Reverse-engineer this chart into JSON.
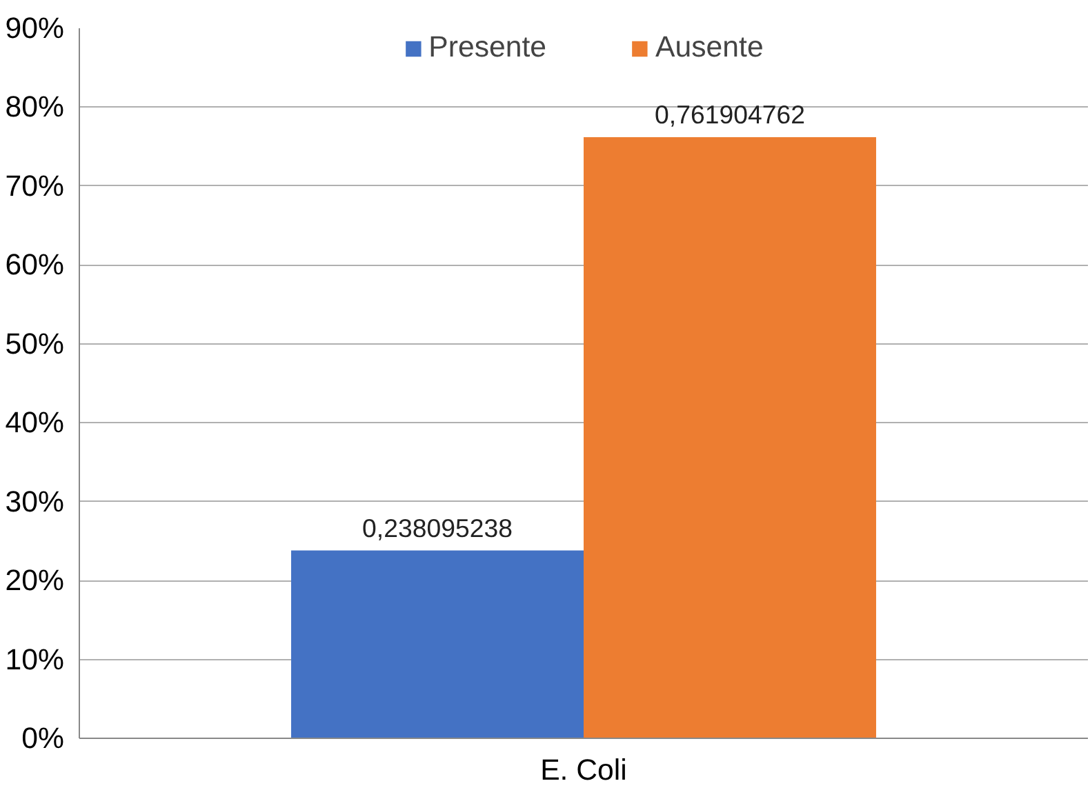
{
  "chart_data": {
    "type": "bar",
    "categories": [
      "E. Coli"
    ],
    "series": [
      {
        "name": "Presente",
        "color": "#4472c4",
        "values": [
          0.238095238
        ],
        "value_labels": [
          "0,238095238"
        ]
      },
      {
        "name": "Ausente",
        "color": "#ed7d31",
        "values": [
          0.761904762
        ],
        "value_labels": [
          "0,761904762"
        ]
      }
    ],
    "ylim": [
      0,
      0.9
    ],
    "yticks": [
      {
        "value": 0,
        "label": "0%"
      },
      {
        "value": 0.1,
        "label": "10%"
      },
      {
        "value": 0.2,
        "label": "20%"
      },
      {
        "value": 0.3,
        "label": "30%"
      },
      {
        "value": 0.4,
        "label": "40%"
      },
      {
        "value": 0.5,
        "label": "50%"
      },
      {
        "value": 0.6,
        "label": "60%"
      },
      {
        "value": 0.7,
        "label": "70%"
      },
      {
        "value": 0.8,
        "label": "80%"
      },
      {
        "value": 0.9,
        "label": "90%"
      }
    ],
    "grid": "y",
    "legend": "top"
  }
}
